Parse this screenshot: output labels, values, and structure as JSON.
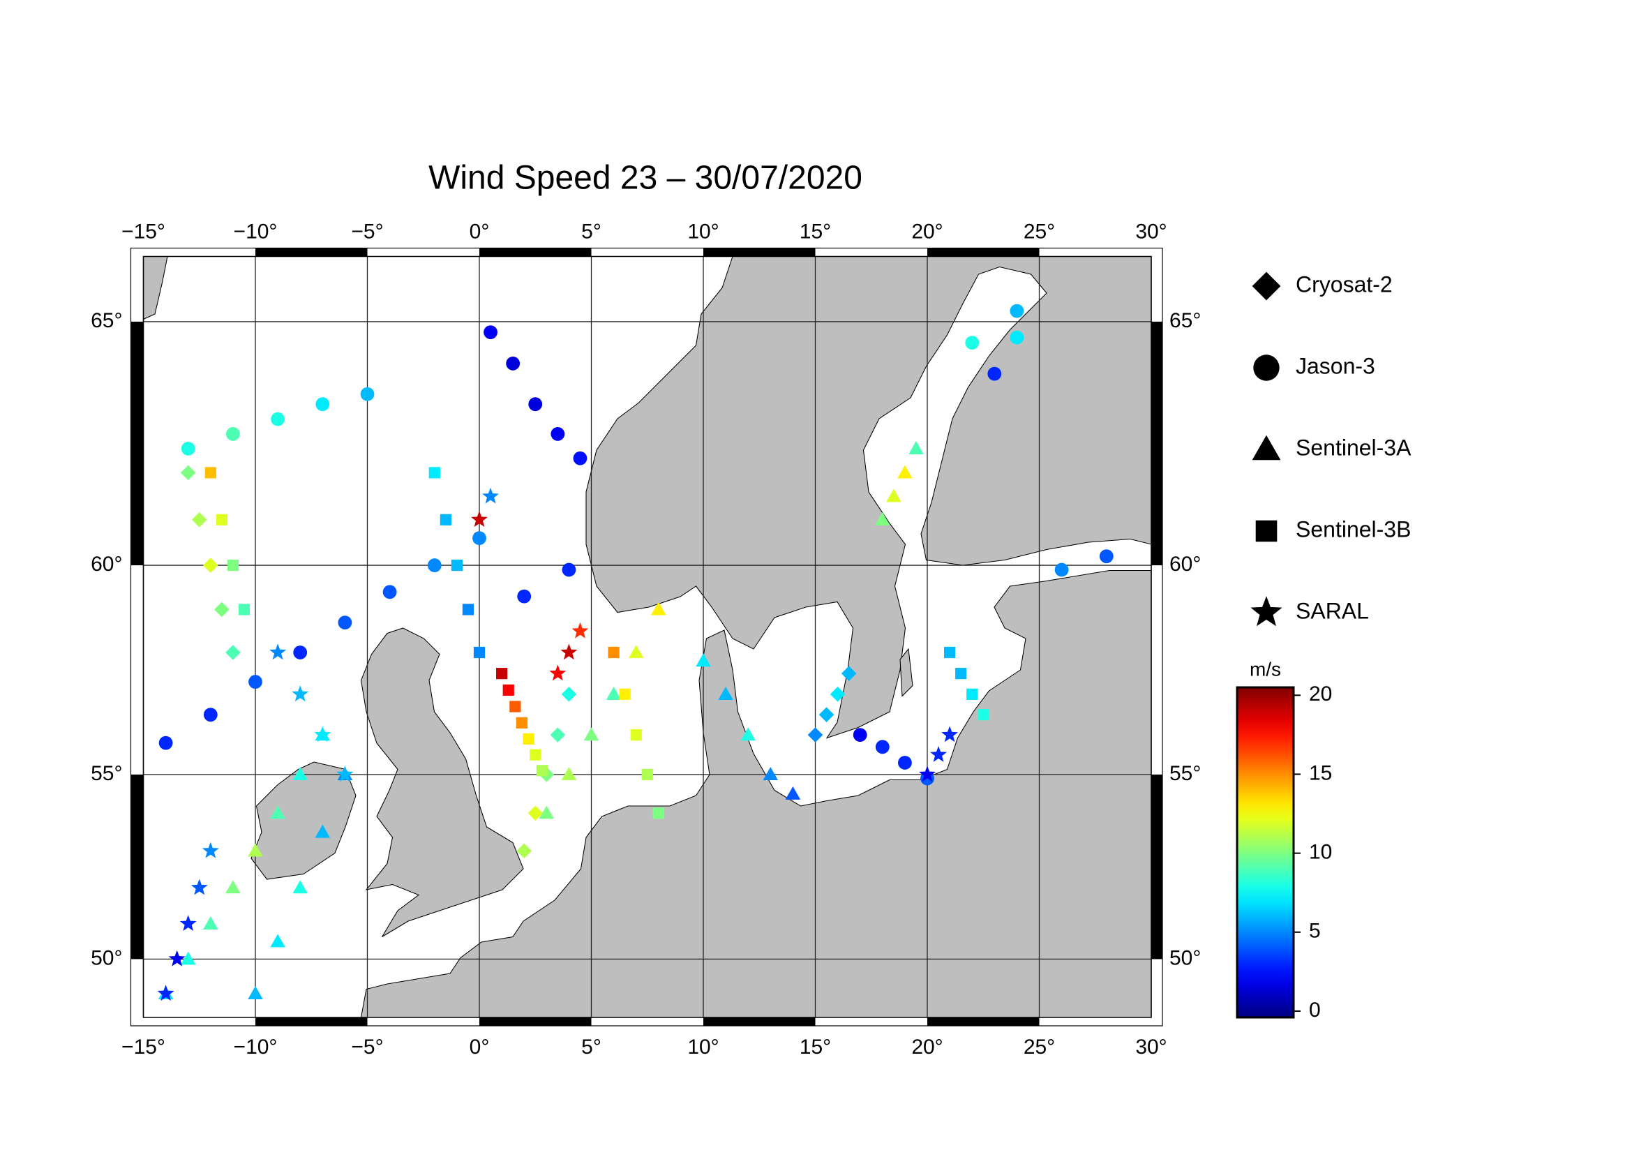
{
  "chart_data": {
    "type": "map-scatter",
    "title": "Wind Speed 23 – 30/07/2020",
    "projection": "mercator",
    "xlim": [
      -15,
      30
    ],
    "ylim": [
      48.3,
      66.2
    ],
    "xticks": [
      {
        "value": -15,
        "label": "−15°"
      },
      {
        "value": -10,
        "label": "−10°"
      },
      {
        "value": -5,
        "label": "−5°"
      },
      {
        "value": 0,
        "label": "0°"
      },
      {
        "value": 5,
        "label": "5°"
      },
      {
        "value": 10,
        "label": "10°"
      },
      {
        "value": 15,
        "label": "15°"
      },
      {
        "value": 20,
        "label": "20°"
      },
      {
        "value": 25,
        "label": "25°"
      },
      {
        "value": 30,
        "label": "30°"
      }
    ],
    "yticks": [
      {
        "value": 50,
        "label": "50°"
      },
      {
        "value": 55,
        "label": "55°"
      },
      {
        "value": 60,
        "label": "60°"
      },
      {
        "value": 65,
        "label": "65°"
      }
    ],
    "grid": true,
    "colormap": "jet",
    "colorbar": {
      "label": "m/s",
      "clim": [
        -0.4,
        20.5
      ],
      "ticks": [
        0,
        5,
        10,
        15,
        20
      ]
    },
    "series": [
      {
        "name": "Cryosat-2",
        "marker": "diamond",
        "lon": [
          -13,
          -12.5,
          -12,
          -11.5,
          -11,
          2,
          2.5,
          3,
          3.5,
          4,
          15,
          15.5,
          16,
          16.5
        ],
        "lat": [
          62,
          61,
          60,
          59,
          58,
          53,
          54,
          55,
          56,
          57,
          56,
          56.5,
          57,
          57.5
        ],
        "values": [
          10,
          11,
          12,
          10,
          9,
          11,
          12,
          10,
          9,
          8,
          5,
          6,
          7,
          6
        ]
      },
      {
        "name": "Jason-3",
        "marker": "circle",
        "lon": [
          -14,
          -12,
          -10,
          -8,
          -6,
          -4,
          -2,
          0,
          2,
          4,
          0.5,
          1.5,
          2.5,
          3.5,
          4.5,
          -13,
          -11,
          -9,
          -7,
          -5,
          17,
          18,
          19,
          20,
          22,
          24,
          26,
          28,
          23,
          24
        ],
        "lat": [
          55.8,
          56.5,
          57.3,
          58.0,
          58.7,
          59.4,
          60.0,
          60.6,
          59.3,
          59.9,
          64.8,
          64.2,
          63.4,
          62.8,
          62.3,
          62.5,
          62.8,
          63.1,
          63.4,
          63.6,
          56.0,
          55.7,
          55.3,
          54.9,
          64.6,
          65.2,
          59.9,
          60.2,
          64.0,
          64.7
        ],
        "values": [
          3,
          3,
          4,
          3,
          4,
          4,
          5,
          5,
          3,
          3,
          2,
          1.5,
          1.5,
          2,
          2.5,
          8,
          9,
          8,
          7,
          6,
          2,
          3,
          3,
          4,
          8,
          6,
          5,
          4,
          3,
          7
        ]
      },
      {
        "name": "Sentinel-3A",
        "marker": "triangle",
        "lon": [
          -14,
          -13,
          -12,
          -11,
          -10,
          -9,
          -8,
          -7,
          3,
          4,
          5,
          6,
          7,
          8,
          -10,
          -9,
          -8,
          -7,
          -6,
          18,
          18.5,
          19,
          19.5,
          10,
          11,
          12,
          13,
          14
        ],
        "lat": [
          49,
          50,
          51,
          52,
          53,
          54,
          55,
          56,
          54,
          55,
          56,
          57,
          58,
          59,
          49,
          50.5,
          52,
          53.5,
          55,
          61,
          61.5,
          62,
          62.5,
          57.8,
          57,
          56,
          55,
          54.5
        ],
        "values": [
          7,
          8,
          9,
          10,
          11,
          9,
          8,
          7,
          10,
          11,
          10,
          9,
          12,
          13,
          6,
          7,
          8,
          6,
          5,
          10,
          12,
          13,
          9,
          7,
          6,
          8,
          5,
          4
        ]
      },
      {
        "name": "Sentinel-3B",
        "marker": "square",
        "lon": [
          1,
          1.3,
          1.6,
          1.9,
          2.2,
          2.5,
          2.8,
          -2,
          -1.5,
          -1,
          -0.5,
          0,
          6,
          6.5,
          7,
          7.5,
          8,
          -12,
          -11.5,
          -11,
          -10.5,
          21,
          21.5,
          22,
          22.5
        ],
        "lat": [
          57.5,
          57.1,
          56.7,
          56.3,
          55.9,
          55.5,
          55.1,
          62,
          61,
          60,
          59,
          58,
          58,
          57,
          56,
          55,
          54,
          62,
          61,
          60,
          59,
          58,
          57.5,
          57,
          56.5
        ],
        "values": [
          19,
          18,
          16,
          15,
          13,
          12,
          11,
          7,
          6,
          6,
          5,
          5,
          15,
          13,
          12,
          11,
          10,
          14,
          12,
          10,
          9,
          6,
          6,
          7,
          8
        ]
      },
      {
        "name": "SARAL",
        "marker": "star",
        "lon": [
          -14,
          -13.5,
          -13,
          -12.5,
          -12,
          -9,
          -8,
          -7,
          -6,
          3.5,
          4,
          4.5,
          0,
          0.5,
          20,
          20.5,
          21
        ],
        "lat": [
          49,
          50,
          51,
          52,
          53,
          58,
          57,
          56,
          55,
          57.5,
          58,
          58.5,
          61,
          61.5,
          55,
          55.5,
          56
        ],
        "values": [
          3,
          2,
          3,
          4,
          5,
          5,
          6,
          7,
          6,
          18,
          19,
          17,
          19,
          5,
          2,
          3,
          3
        ]
      }
    ]
  }
}
